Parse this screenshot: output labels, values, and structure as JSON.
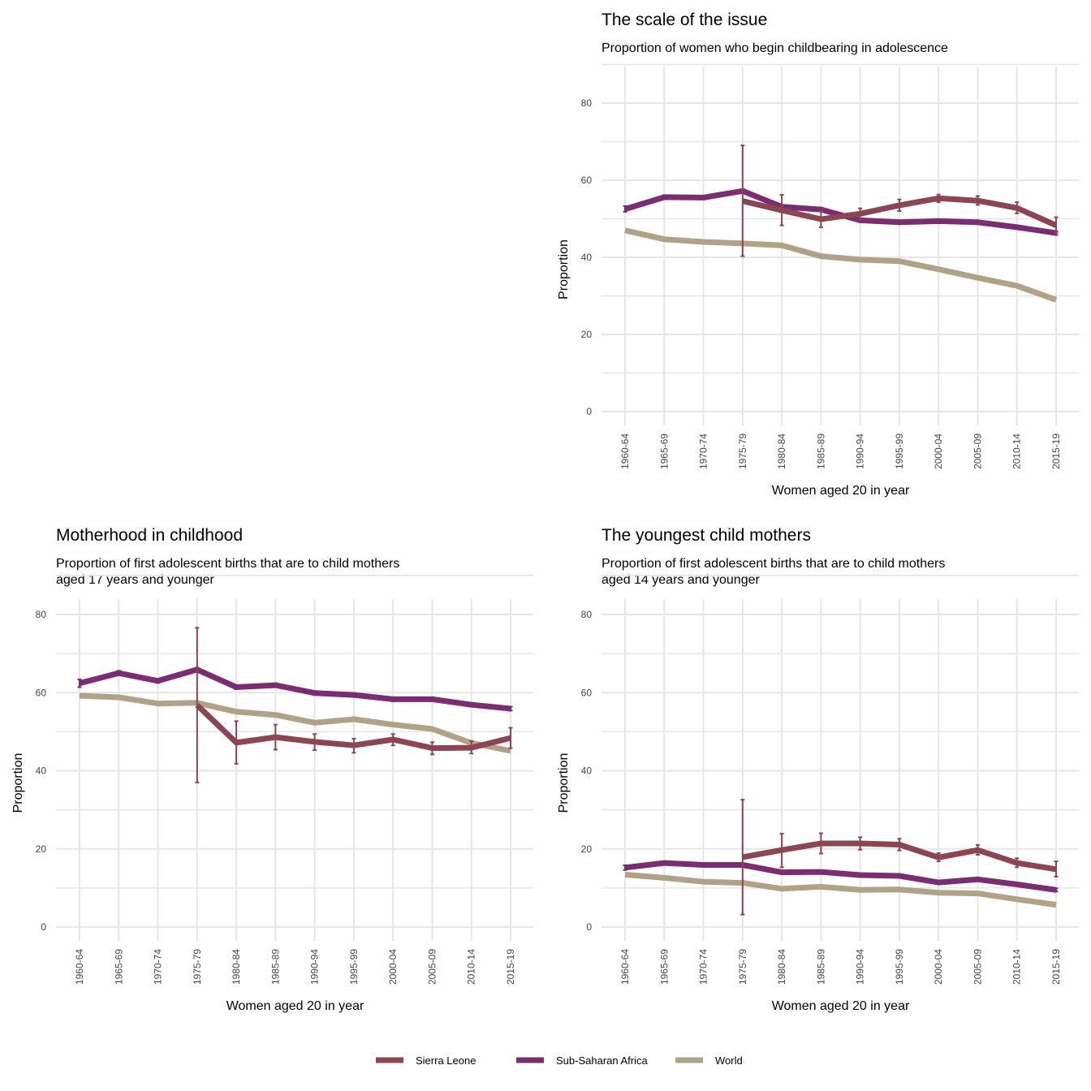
{
  "colors": {
    "sierra_leone": "#8b4553",
    "sub_saharan_africa": "#7b2d73",
    "world": "#b0a286",
    "grid": "#e6e6e6"
  },
  "legend": {
    "items": [
      {
        "label": "Sierra Leone",
        "color": "#8b4553"
      },
      {
        "label": "Sub-Saharan Africa",
        "color": "#7b2d73"
      },
      {
        "label": "World",
        "color": "#b0a286"
      }
    ]
  },
  "chart_data": [
    {
      "type": "line",
      "title": "The scale of the issue",
      "subtitle": [
        "Proportion of women who begin childbearing in adolescence"
      ],
      "xlabel": "Women aged 20 in year",
      "ylabel": "Proportion",
      "ylim": [
        0,
        80
      ],
      "yticks": [
        0,
        20,
        40,
        60,
        80
      ],
      "grid": true,
      "categories": [
        "1960-64",
        "1965-69",
        "1970-74",
        "1975-79",
        "1980-84",
        "1985-89",
        "1990-94",
        "1995-99",
        "2000-04",
        "2005-09",
        "2010-14",
        "2015-19"
      ],
      "series": [
        {
          "name": "World",
          "values": [
            47,
            44.7,
            44,
            43.6,
            43.1,
            40.3,
            39.4,
            39,
            36.9,
            34.7,
            32.6,
            29
          ]
        },
        {
          "name": "Sub-Saharan Africa",
          "values": [
            52.5,
            55.6,
            55.5,
            57.2,
            53.1,
            52.4,
            49.6,
            49.1,
            49.4,
            49.1,
            47.8,
            46.3
          ],
          "error": [
            [
              51.8,
              53.3
            ],
            [
              55.1,
              56.1
            ],
            [
              55,
              56
            ],
            [
              56.7,
              57.7
            ],
            [
              52.6,
              53.6
            ],
            [
              51.9,
              52.9
            ],
            [
              49.1,
              50.1
            ],
            [
              48.6,
              49.6
            ],
            [
              48.9,
              49.9
            ],
            [
              48.6,
              49.6
            ],
            [
              47.3,
              48.3
            ],
            [
              45.8,
              46.8
            ]
          ]
        },
        {
          "name": "Sierra Leone",
          "values": [
            null,
            null,
            null,
            54.6,
            52.2,
            49.9,
            51.3,
            53.5,
            55.3,
            54.7,
            52.8,
            48.3
          ],
          "error": [
            null,
            null,
            null,
            [
              40.3,
              69
            ],
            [
              48.3,
              56.2
            ],
            [
              47.8,
              52.1
            ],
            [
              49.7,
              52.7
            ],
            [
              52,
              55
            ],
            [
              54.3,
              56.3
            ],
            [
              53.6,
              55.9
            ],
            [
              51.4,
              54.3
            ],
            [
              46.4,
              50.4
            ]
          ]
        }
      ]
    },
    {
      "type": "line",
      "title": "Motherhood in childhood",
      "subtitle": [
        "Proportion of first adolescent births that are to child mothers",
        "aged 17 years and younger"
      ],
      "xlabel": "Women aged 20 in year",
      "ylabel": "Proportion",
      "ylim": [
        0,
        80
      ],
      "yticks": [
        0,
        20,
        40,
        60,
        80
      ],
      "grid": true,
      "categories": [
        "1960-64",
        "1965-69",
        "1970-74",
        "1975-79",
        "1980-84",
        "1985-89",
        "1990-94",
        "1995-99",
        "2000-04",
        "2005-09",
        "2010-14",
        "2015-19"
      ],
      "series": [
        {
          "name": "World",
          "values": [
            59.2,
            58.8,
            57.2,
            57.4,
            55.1,
            54.3,
            52.3,
            53.2,
            51.8,
            50.7,
            47.1,
            45.1
          ]
        },
        {
          "name": "Sub-Saharan Africa",
          "values": [
            62.4,
            65,
            63,
            65.9,
            61.4,
            61.9,
            59.9,
            59.4,
            58.3,
            58.3,
            56.9,
            55.9
          ],
          "error": [
            [
              61.4,
              63.4
            ],
            [
              64.4,
              65.6
            ],
            [
              62.5,
              63.5
            ],
            [
              65.4,
              66.4
            ],
            [
              60.9,
              61.9
            ],
            [
              61.4,
              62.4
            ],
            [
              59.4,
              60.4
            ],
            [
              58.9,
              59.9
            ],
            [
              57.8,
              58.8
            ],
            [
              57.8,
              58.8
            ],
            [
              56.4,
              57.4
            ],
            [
              55.4,
              56.4
            ]
          ]
        },
        {
          "name": "Sierra Leone",
          "values": [
            null,
            null,
            null,
            56.8,
            47.2,
            48.6,
            47.4,
            46.5,
            48,
            45.8,
            45.9,
            48.4
          ],
          "error": [
            null,
            null,
            null,
            [
              37,
              76.6
            ],
            [
              41.8,
              52.7
            ],
            [
              45.4,
              51.8
            ],
            [
              45.3,
              49.4
            ],
            [
              44.6,
              48.2
            ],
            [
              46.5,
              49.4
            ],
            [
              44.2,
              47.3
            ],
            [
              44.4,
              47.6
            ],
            [
              45.8,
              51
            ]
          ]
        }
      ]
    },
    {
      "type": "line",
      "title": "The youngest child mothers",
      "subtitle": [
        "Proportion of first adolescent births that are to child mothers",
        "aged 14 years and younger"
      ],
      "xlabel": "Women aged 20 in year",
      "ylabel": "Proportion",
      "ylim": [
        0,
        80
      ],
      "yticks": [
        0,
        20,
        40,
        60,
        80
      ],
      "grid": true,
      "categories": [
        "1960-64",
        "1965-69",
        "1970-74",
        "1975-79",
        "1980-84",
        "1985-89",
        "1990-94",
        "1995-99",
        "2000-04",
        "2005-09",
        "2010-14",
        "2015-19"
      ],
      "series": [
        {
          "name": "World",
          "values": [
            13.4,
            12.6,
            11.6,
            11.3,
            9.8,
            10.3,
            9.5,
            9.6,
            8.8,
            8.6,
            7.1,
            5.7
          ]
        },
        {
          "name": "Sub-Saharan Africa",
          "values": [
            15.2,
            16.4,
            15.9,
            15.9,
            14,
            14.1,
            13.3,
            13.1,
            11.4,
            12.2,
            10.9,
            9.5
          ],
          "error": [
            [
              14.6,
              15.8
            ],
            [
              16,
              16.8
            ],
            [
              15.5,
              16.3
            ],
            [
              15.5,
              16.3
            ],
            [
              13.6,
              14.4
            ],
            [
              13.7,
              14.5
            ],
            [
              12.9,
              13.7
            ],
            [
              12.7,
              13.5
            ],
            [
              11,
              11.8
            ],
            [
              11.8,
              12.6
            ],
            [
              10.5,
              11.3
            ],
            [
              9.1,
              9.9
            ]
          ]
        },
        {
          "name": "Sierra Leone",
          "values": [
            null,
            null,
            null,
            17.9,
            19.7,
            21.4,
            21.4,
            21.1,
            17.8,
            19.7,
            16.4,
            14.8
          ],
          "error": [
            null,
            null,
            null,
            [
              3.2,
              32.6
            ],
            [
              15.3,
              23.9
            ],
            [
              18.8,
              24
            ],
            [
              19.8,
              23
            ],
            [
              19.6,
              22.6
            ],
            [
              16.8,
              18.9
            ],
            [
              18.5,
              21
            ],
            [
              15.3,
              17.6
            ],
            [
              12.9,
              16.8
            ]
          ]
        }
      ]
    }
  ]
}
